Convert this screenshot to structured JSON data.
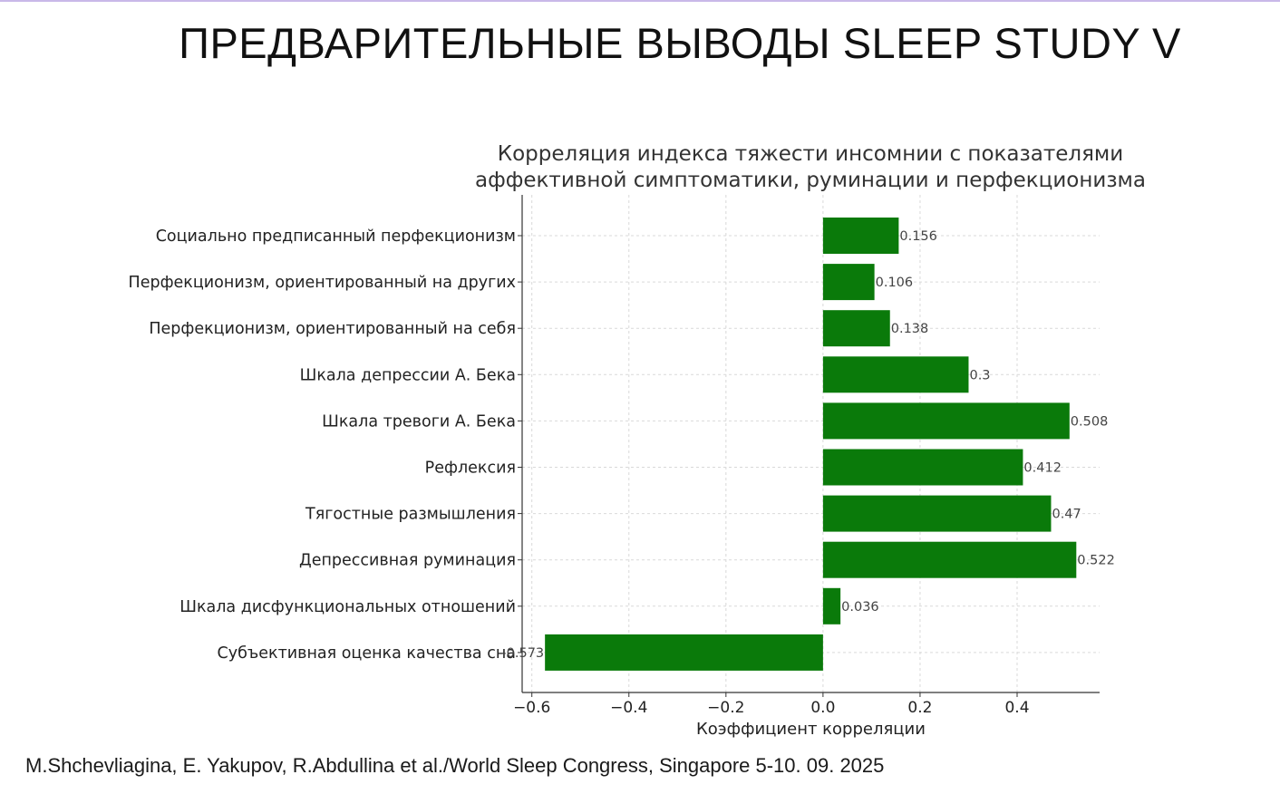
{
  "slide": {
    "title": "ПРЕДВАРИТЕЛЬНЫЕ ВЫВОДЫ  SLEEP STUDY  V",
    "citation": "M.Shchevliagina, E. Yakupov, R.Abdullina et al./World Sleep Congress, Singapore 5-10. 09. 2025"
  },
  "colors": {
    "bar": "#0a7a0a",
    "grid": "#d9d9d9",
    "axis": "#333333",
    "text": "#222222",
    "title_bar_accent": "#c9b8e8"
  },
  "chart_data": {
    "type": "bar",
    "orientation": "horizontal",
    "title_lines": [
      "Корреляция индекса тяжести инсомнии с показателями",
      "аффективной симптоматики, руминации и перфекционизма"
    ],
    "xlabel": "Коэффициент корреляции",
    "ylabel": "",
    "xlim": [
      -0.62,
      0.57
    ],
    "xticks": [
      -0.6,
      -0.4,
      -0.2,
      0.0,
      0.2,
      0.4
    ],
    "xtick_labels": [
      "−0.6",
      "−0.4",
      "−0.2",
      "0.0",
      "0.2",
      "0.4"
    ],
    "grid": true,
    "categories": [
      "Социально предписанный перфекционизм",
      "Перфекционизм, ориентированный на других",
      "Перфекционизм, ориентированный на себя",
      "Шкала депрессии А. Бека",
      "Шкала тревоги А. Бека",
      "Рефлексия",
      "Тягостные размышления",
      "Депрессивная руминация",
      "Шкала дисфункциональных отношений",
      "Субъективная оценка качества сна"
    ],
    "values": [
      0.156,
      0.106,
      0.138,
      0.3,
      0.508,
      0.412,
      0.47,
      0.522,
      0.036,
      -0.573
    ],
    "value_labels": [
      "0.156",
      "0.106",
      "0.138",
      "0.3",
      "0.508",
      "0.412",
      "0.47",
      "0.522",
      "0.036",
      "-0.573"
    ]
  }
}
